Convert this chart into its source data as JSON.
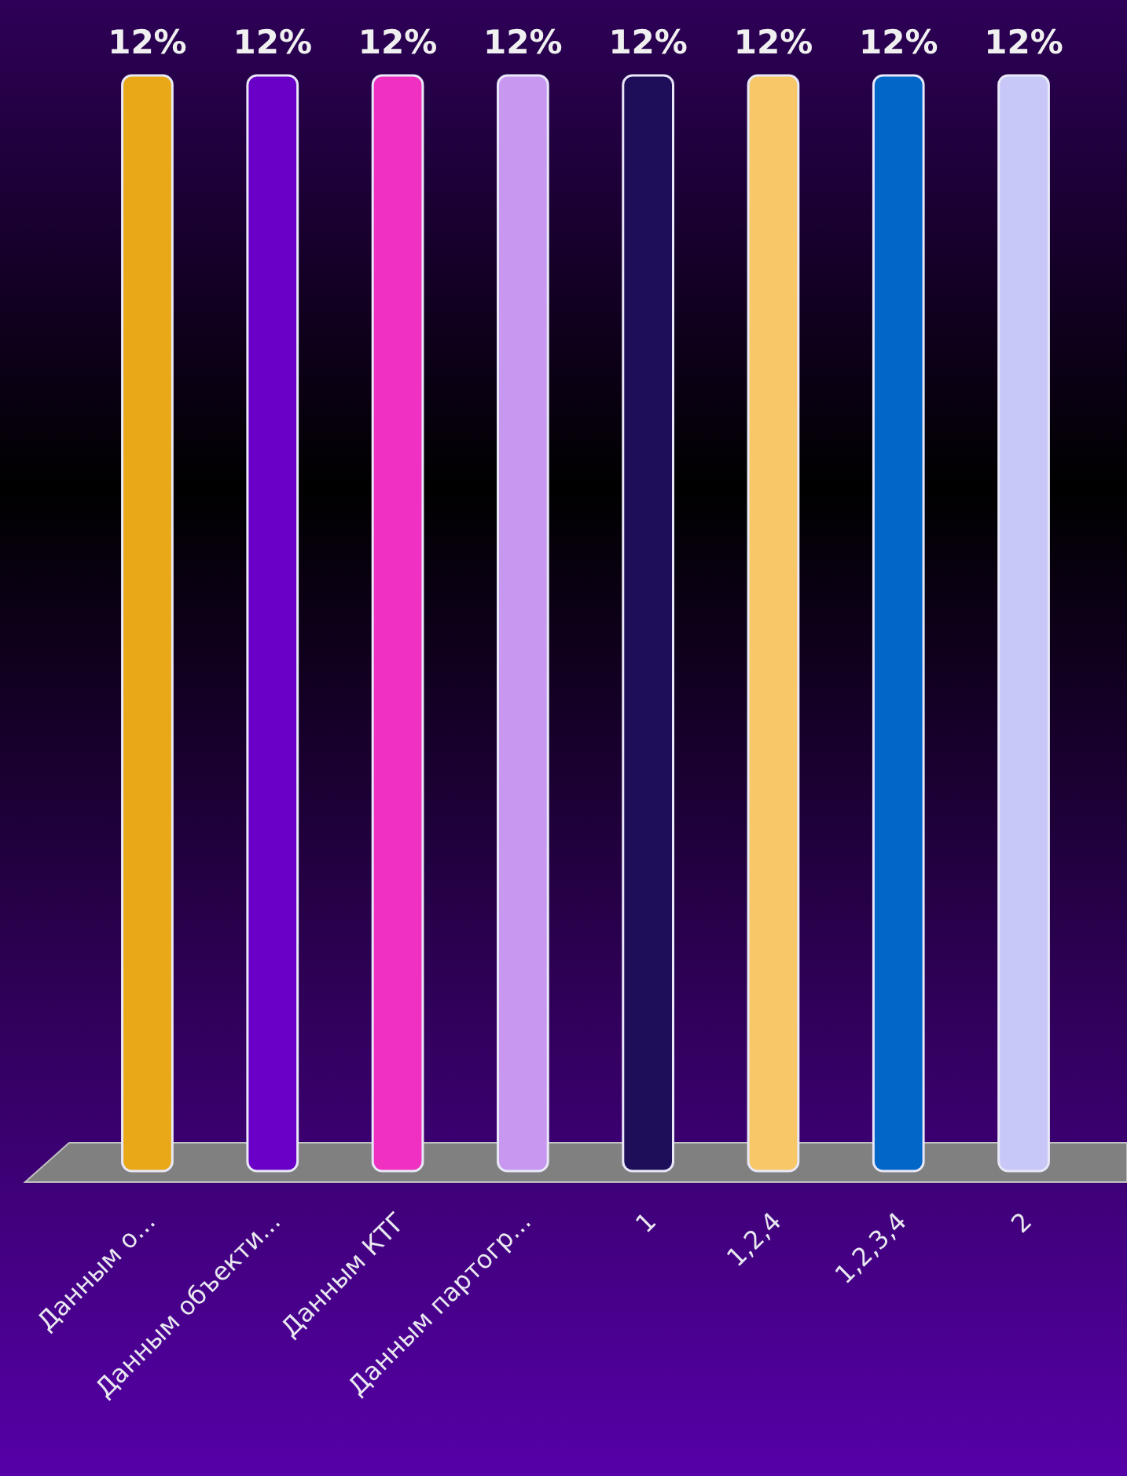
{
  "chart_data": {
    "type": "bar",
    "categories": [
      "Данным о...",
      "Данным объекти...",
      "Данным КТГ",
      "Данным партогр...",
      "1",
      "1,2,4",
      "1,2,3,4",
      "2"
    ],
    "values": [
      12,
      12,
      12,
      12,
      12,
      12,
      12,
      12
    ],
    "colors": [
      "#e8a818",
      "#6a00c8",
      "#f030c0",
      "#c898f0",
      "#1e0e5a",
      "#f8c868",
      "#0066c8",
      "#c8c8f8"
    ],
    "value_labels": [
      "12%",
      "12%",
      "12%",
      "12%",
      "12%",
      "12%",
      "12%",
      "12%"
    ]
  }
}
